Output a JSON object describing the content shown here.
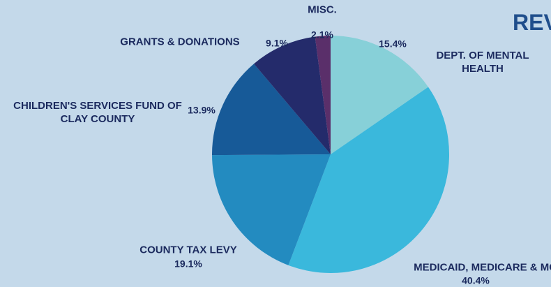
{
  "chart_data": {
    "type": "pie",
    "title": "REV",
    "categories": [
      "DEPT. OF MENTAL HEALTH",
      "MEDICAID, MEDICARE & MC+",
      "COUNTY TAX LEVY",
      "CHILDREN'S SERVICES FUND OF CLAY COUNTY",
      "GRANTS & DONATIONS",
      "MISC."
    ],
    "values": [
      15.4,
      40.4,
      19.1,
      13.9,
      9.1,
      2.1
    ],
    "value_labels": [
      "15.4%",
      "40.4%",
      "19.1%",
      "13.9%",
      "9.1%",
      "2.1%"
    ],
    "colors": [
      "#87d0d8",
      "#3ab8dc",
      "#238bc0",
      "#175a98",
      "#242b6b",
      "#5a2f6a"
    ]
  }
}
